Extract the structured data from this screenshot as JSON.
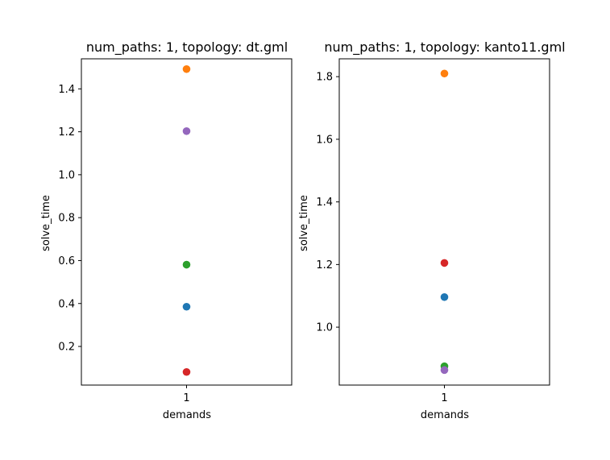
{
  "chart_data": [
    {
      "type": "scatter",
      "title": "num_paths: 1, topology: dt.gml",
      "xlabel": "demands",
      "ylabel": "solve_time",
      "categories": [
        "1"
      ],
      "ylim": [
        0.02,
        1.54
      ],
      "yticks": [
        "0.2",
        "0.4",
        "0.6",
        "0.8",
        "1.0",
        "1.2",
        "1.4"
      ],
      "grid": false,
      "points": [
        {
          "x": "1",
          "y": 0.385,
          "color": "#1f77b4"
        },
        {
          "x": "1",
          "y": 1.492,
          "color": "#ff7f0e"
        },
        {
          "x": "1",
          "y": 0.581,
          "color": "#2ca02c"
        },
        {
          "x": "1",
          "y": 0.081,
          "color": "#d62728"
        },
        {
          "x": "1",
          "y": 1.203,
          "color": "#9467bd"
        }
      ]
    },
    {
      "type": "scatter",
      "title": "num_paths: 1, topology: kanto11.gml",
      "xlabel": "demands",
      "ylabel": "solve_time",
      "categories": [
        "1"
      ],
      "ylim": [
        0.815,
        1.857
      ],
      "yticks": [
        "1.0",
        "1.2",
        "1.4",
        "1.6",
        "1.8"
      ],
      "grid": false,
      "points": [
        {
          "x": "1",
          "y": 1.096,
          "color": "#1f77b4"
        },
        {
          "x": "1",
          "y": 1.81,
          "color": "#ff7f0e"
        },
        {
          "x": "1",
          "y": 0.875,
          "color": "#2ca02c"
        },
        {
          "x": "1",
          "y": 1.205,
          "color": "#d62728"
        },
        {
          "x": "1",
          "y": 0.863,
          "color": "#9467bd"
        }
      ]
    }
  ]
}
